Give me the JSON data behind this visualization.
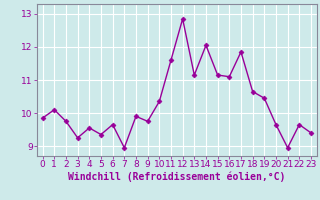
{
  "x": [
    0,
    1,
    2,
    3,
    4,
    5,
    6,
    7,
    8,
    9,
    10,
    11,
    12,
    13,
    14,
    15,
    16,
    17,
    18,
    19,
    20,
    21,
    22,
    23
  ],
  "y": [
    9.85,
    10.1,
    9.75,
    9.25,
    9.55,
    9.35,
    9.65,
    8.95,
    9.9,
    9.75,
    10.35,
    11.6,
    12.85,
    11.15,
    12.05,
    11.15,
    11.1,
    11.85,
    10.65,
    10.45,
    9.65,
    8.95,
    9.65,
    9.4
  ],
  "line_color": "#990099",
  "marker": "D",
  "markersize": 2.5,
  "linewidth": 1.0,
  "xlabel": "Windchill (Refroidissement éolien,°C)",
  "xlabel_fontsize": 7,
  "ylim": [
    8.7,
    13.3
  ],
  "yticks": [
    9,
    10,
    11,
    12,
    13
  ],
  "xticks": [
    0,
    1,
    2,
    3,
    4,
    5,
    6,
    7,
    8,
    9,
    10,
    11,
    12,
    13,
    14,
    15,
    16,
    17,
    18,
    19,
    20,
    21,
    22,
    23
  ],
  "background_color": "#ceeaea",
  "grid_color": "#ffffff",
  "tick_fontsize": 6.5,
  "spine_color": "#888899"
}
